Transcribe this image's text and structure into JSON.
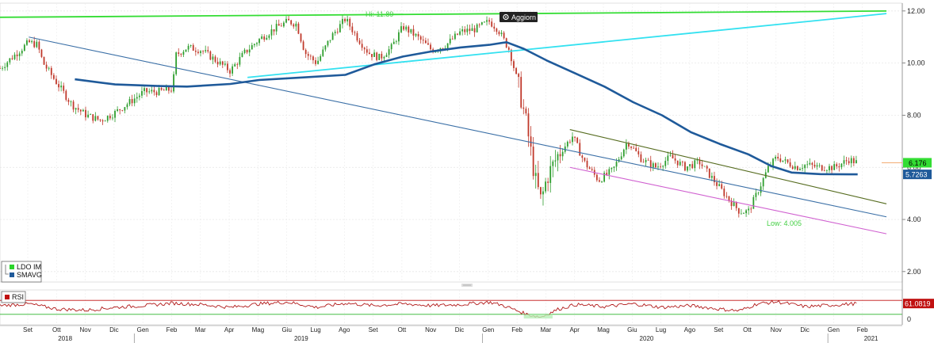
{
  "toolbar": {
    "update_button": "Aggiorn"
  },
  "legend": [
    {
      "label": "LDO IM",
      "color": "#2bd42b"
    },
    {
      "label": "SMAVG",
      "color": "#1f5a9a"
    }
  ],
  "rsi_legend": {
    "label": "RSI",
    "color": "#c01010"
  },
  "colors": {
    "candle_up": "#2e9e2e",
    "candle_down": "#c0392b",
    "sma": "#1f5a9a",
    "rsi": "#b01818",
    "green_line": "#33dd33",
    "cyan_line": "#33e1f0",
    "blue_line": "#3a6fa6",
    "olive_line": "#556b1e",
    "magenta_line": "#d060d0"
  },
  "chart_data": [
    {
      "type": "candlestick",
      "series": [
        {
          "name": "LDO IM"
        },
        {
          "name": "SMAVG"
        }
      ],
      "ylim": [
        1.6,
        12.3
      ],
      "y_ticks": [
        "2.00",
        "4.00",
        "6.00",
        "8.00",
        "10.00",
        "12.00"
      ],
      "x_labels": [
        "Set",
        "Ott",
        "Nov",
        "Dic",
        "Gen",
        "Feb",
        "Mar",
        "Apr",
        "Mag",
        "Giu",
        "Lug",
        "Ago",
        "Set",
        "Ott",
        "Nov",
        "Dic",
        "Gen",
        "Feb",
        "Mar",
        "Apr",
        "Mag",
        "Giu",
        "Lug",
        "Ago",
        "Set",
        "Ott",
        "Nov",
        "Dic",
        "Gen",
        "Feb"
      ],
      "years": [
        "2018",
        "2019",
        "2020",
        "2021"
      ],
      "grid": true,
      "annotations": {
        "high": "Hi: 11.89",
        "low": "Low: 4.005",
        "last_price": "6.176",
        "sma_value": "5.7263"
      },
      "price_path": [
        [
          0,
          9.8
        ],
        [
          1.0,
          10.8
        ],
        [
          1.3,
          10.7
        ],
        [
          1.5,
          10.0
        ],
        [
          2.0,
          9.2
        ],
        [
          2.5,
          8.4
        ],
        [
          3.0,
          8.0
        ],
        [
          3.5,
          7.8
        ],
        [
          4.0,
          8.1
        ],
        [
          4.5,
          8.5
        ],
        [
          5.0,
          8.9
        ],
        [
          5.5,
          8.9
        ],
        [
          6.0,
          9.0
        ],
        [
          6.1,
          10.3
        ],
        [
          6.5,
          10.6
        ],
        [
          7.0,
          10.5
        ],
        [
          7.5,
          10.1
        ],
        [
          8.0,
          9.7
        ],
        [
          8.5,
          10.4
        ],
        [
          9.0,
          10.9
        ],
        [
          9.5,
          11.3
        ],
        [
          10.0,
          11.6
        ],
        [
          10.3,
          11.5
        ],
        [
          10.6,
          10.4
        ],
        [
          11.0,
          10.0
        ],
        [
          11.5,
          11.0
        ],
        [
          12.0,
          11.7
        ],
        [
          12.4,
          11.0
        ],
        [
          12.8,
          10.4
        ],
        [
          13.2,
          10.2
        ],
        [
          13.6,
          10.6
        ],
        [
          14.0,
          11.4
        ],
        [
          14.5,
          11.0
        ],
        [
          15.0,
          10.5
        ],
        [
          15.5,
          10.7
        ],
        [
          16.0,
          11.2
        ],
        [
          16.5,
          11.3
        ],
        [
          17.0,
          11.6
        ],
        [
          17.3,
          11.3
        ],
        [
          17.7,
          10.5
        ],
        [
          18.0,
          9.2
        ],
        [
          18.3,
          7.6
        ],
        [
          18.6,
          5.5
        ],
        [
          18.8,
          4.7
        ],
        [
          19.0,
          5.6
        ],
        [
          19.4,
          6.5
        ],
        [
          19.9,
          7.2
        ],
        [
          20.3,
          6.2
        ],
        [
          20.8,
          5.5
        ],
        [
          21.3,
          5.9
        ],
        [
          21.8,
          7.0
        ],
        [
          22.3,
          6.3
        ],
        [
          22.8,
          6.0
        ],
        [
          23.3,
          6.4
        ],
        [
          23.8,
          6.0
        ],
        [
          24.3,
          6.2
        ],
        [
          24.8,
          5.5
        ],
        [
          25.3,
          4.8
        ],
        [
          25.7,
          4.3
        ],
        [
          26.0,
          4.3
        ],
        [
          26.3,
          5.0
        ],
        [
          26.7,
          6.0
        ],
        [
          27.0,
          6.4
        ],
        [
          27.3,
          6.2
        ],
        [
          27.7,
          6.0
        ],
        [
          28.0,
          6.1
        ],
        [
          28.5,
          6.0
        ],
        [
          29.0,
          6.0
        ],
        [
          29.5,
          6.3
        ],
        [
          29.8,
          6.176
        ]
      ],
      "sma_path": [
        [
          2.6,
          9.38
        ],
        [
          4.0,
          9.18
        ],
        [
          5.5,
          9.12
        ],
        [
          6.5,
          9.1
        ],
        [
          8.0,
          9.2
        ],
        [
          9.0,
          9.35
        ],
        [
          10.5,
          9.45
        ],
        [
          12.0,
          9.55
        ],
        [
          13.0,
          9.95
        ],
        [
          14.0,
          10.25
        ],
        [
          15.0,
          10.45
        ],
        [
          16.0,
          10.6
        ],
        [
          17.0,
          10.7
        ],
        [
          17.6,
          10.8
        ],
        [
          18.2,
          10.55
        ],
        [
          19.0,
          10.1
        ],
        [
          20.0,
          9.6
        ],
        [
          21.0,
          9.1
        ],
        [
          22.0,
          8.5
        ],
        [
          23.0,
          8.0
        ],
        [
          24.0,
          7.35
        ],
        [
          25.0,
          6.9
        ],
        [
          26.0,
          6.5
        ],
        [
          26.8,
          6.05
        ],
        [
          27.5,
          5.8
        ],
        [
          28.5,
          5.74
        ],
        [
          29.5,
          5.73
        ],
        [
          29.8,
          5.73
        ]
      ],
      "trend_lines": [
        {
          "name": "green-trend-line",
          "color": "#33dd33",
          "from": [
            -1,
            11.75
          ],
          "to": [
            30.8,
            12.0
          ]
        },
        {
          "name": "cyan-trend-line",
          "color": "#33e1f0",
          "from": [
            8.6,
            9.45
          ],
          "to": [
            30.8,
            11.9
          ]
        },
        {
          "name": "blue-trend-line",
          "color": "#3a6fa6",
          "from": [
            1.0,
            11.0
          ],
          "to": [
            30.8,
            4.1
          ]
        },
        {
          "name": "olive-trend-line",
          "color": "#556b1e",
          "from": [
            19.8,
            7.45
          ],
          "to": [
            30.8,
            4.6
          ]
        },
        {
          "name": "magenta-trend-line",
          "color": "#d060d0",
          "from": [
            19.8,
            6.0
          ],
          "to": [
            30.8,
            3.45
          ]
        }
      ]
    },
    {
      "type": "line",
      "series": [
        {
          "name": "RSI"
        }
      ],
      "last_value": "61.0819",
      "y_tick": "0",
      "upper_band": 70,
      "lower_band": 30,
      "rsi_path": [
        [
          0,
          55
        ],
        [
          1,
          60
        ],
        [
          2,
          45
        ],
        [
          3,
          42
        ],
        [
          4,
          50
        ],
        [
          5,
          55
        ],
        [
          6,
          62
        ],
        [
          7,
          58
        ],
        [
          8,
          50
        ],
        [
          9,
          60
        ],
        [
          10,
          65
        ],
        [
          11,
          50
        ],
        [
          12,
          62
        ],
        [
          13,
          55
        ],
        [
          14,
          60
        ],
        [
          15,
          55
        ],
        [
          16,
          58
        ],
        [
          17,
          65
        ],
        [
          17.5,
          55
        ],
        [
          18.3,
          30
        ],
        [
          18.8,
          22
        ],
        [
          19.4,
          45
        ],
        [
          20,
          58
        ],
        [
          21,
          52
        ],
        [
          22,
          60
        ],
        [
          23,
          50
        ],
        [
          24,
          55
        ],
        [
          25,
          45
        ],
        [
          25.7,
          40
        ],
        [
          26.3,
          60
        ],
        [
          27,
          66
        ],
        [
          28,
          52
        ],
        [
          29,
          57
        ],
        [
          29.8,
          61
        ]
      ]
    }
  ]
}
